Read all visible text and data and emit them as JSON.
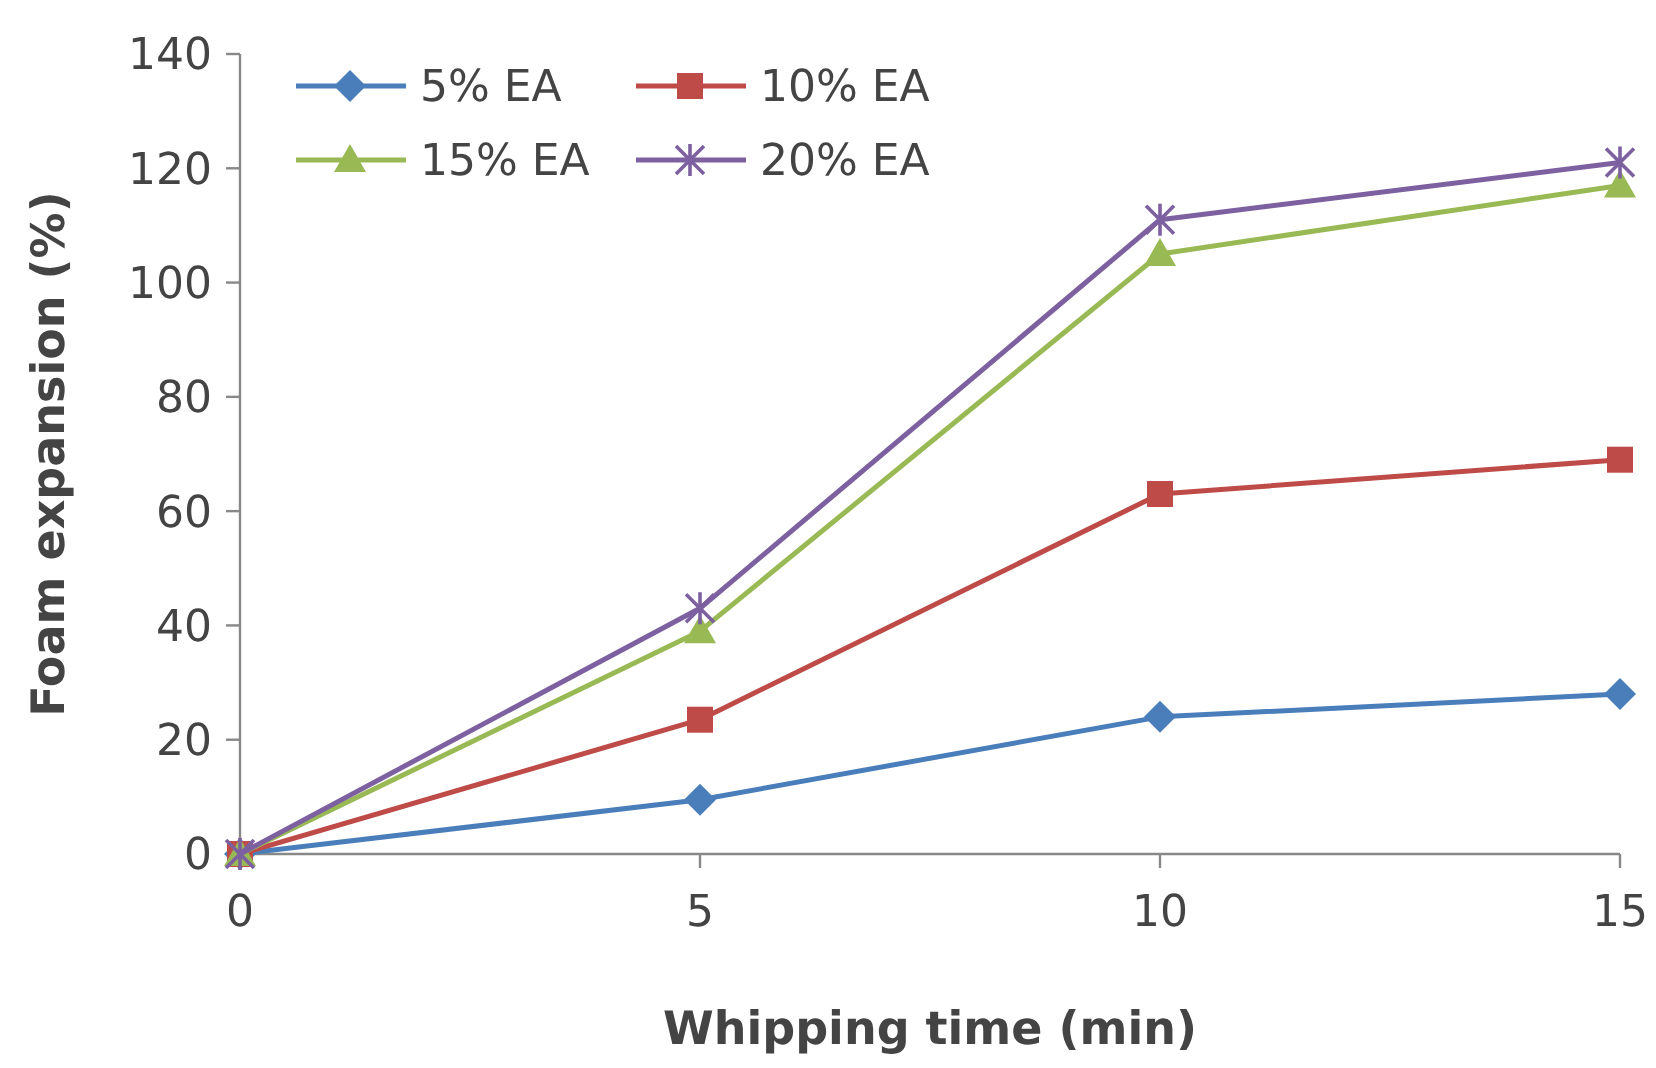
{
  "chart_data": {
    "type": "line",
    "xlabel": "Whipping time (min)",
    "ylabel": "Foam expansion (%)",
    "x": [
      0,
      5,
      10,
      15
    ],
    "xlim": [
      0,
      15
    ],
    "xticks": [
      0,
      5,
      10,
      15
    ],
    "ylim": [
      0,
      140
    ],
    "yticks": [
      0,
      20,
      40,
      60,
      80,
      100,
      120,
      140
    ],
    "grid": false,
    "legend": "top left",
    "series": [
      {
        "name": "5% EA",
        "color": "#4a7ebb",
        "marker": "diamond",
        "values": [
          0,
          9.5,
          24,
          28
        ]
      },
      {
        "name": "10% EA",
        "color": "#be4b48",
        "marker": "square",
        "values": [
          0,
          23.5,
          63,
          69
        ]
      },
      {
        "name": "15% EA",
        "color": "#98b954",
        "marker": "triangle",
        "values": [
          0,
          39,
          105,
          117
        ]
      },
      {
        "name": "20% EA",
        "color": "#7d60a0",
        "marker": "cross",
        "values": [
          0,
          43,
          111,
          121
        ]
      }
    ]
  }
}
